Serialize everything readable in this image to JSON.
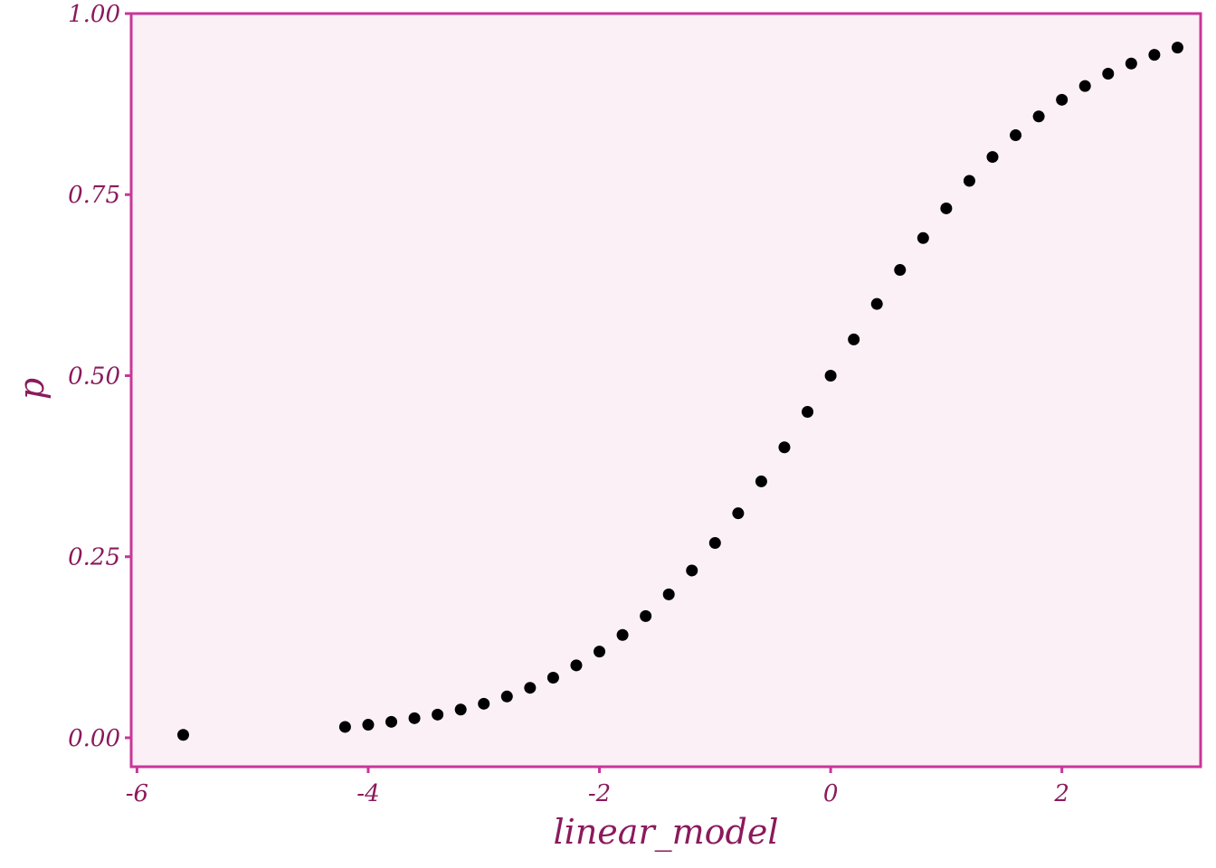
{
  "chart_data": {
    "type": "scatter",
    "title": "",
    "xlabel": "linear_model",
    "ylabel": "p",
    "xlim": [
      -6.05,
      3.2
    ],
    "ylim": [
      -0.04,
      1.0
    ],
    "x_ticks": [
      -6,
      -4,
      -2,
      0,
      2
    ],
    "x_tick_labels": [
      "-6",
      "-4",
      "-2",
      "0",
      "2"
    ],
    "y_ticks": [
      0,
      0.25,
      0.5,
      0.75,
      1.0
    ],
    "y_tick_labels": [
      "0.00",
      "0.25",
      "0.50",
      "0.75",
      "1.00"
    ],
    "grid": false,
    "legend": "none",
    "colors": {
      "panel_background": "#fbf0f6",
      "panel_border": "#c8369a",
      "text": "#8b1a5c",
      "point": "#000000"
    },
    "points": [
      {
        "x": -5.6,
        "y": 0.004
      },
      {
        "x": -4.2,
        "y": 0.015
      },
      {
        "x": -4.0,
        "y": 0.018
      },
      {
        "x": -3.8,
        "y": 0.022
      },
      {
        "x": -3.6,
        "y": 0.027
      },
      {
        "x": -3.4,
        "y": 0.032
      },
      {
        "x": -3.2,
        "y": 0.039
      },
      {
        "x": -3.0,
        "y": 0.047
      },
      {
        "x": -2.8,
        "y": 0.057
      },
      {
        "x": -2.6,
        "y": 0.069
      },
      {
        "x": -2.4,
        "y": 0.083
      },
      {
        "x": -2.2,
        "y": 0.1
      },
      {
        "x": -2.0,
        "y": 0.119
      },
      {
        "x": -1.8,
        "y": 0.142
      },
      {
        "x": -1.6,
        "y": 0.168
      },
      {
        "x": -1.4,
        "y": 0.198
      },
      {
        "x": -1.2,
        "y": 0.231
      },
      {
        "x": -1.0,
        "y": 0.269
      },
      {
        "x": -0.8,
        "y": 0.31
      },
      {
        "x": -0.6,
        "y": 0.354
      },
      {
        "x": -0.4,
        "y": 0.401
      },
      {
        "x": -0.2,
        "y": 0.45
      },
      {
        "x": 0.0,
        "y": 0.5
      },
      {
        "x": 0.2,
        "y": 0.55
      },
      {
        "x": 0.4,
        "y": 0.599
      },
      {
        "x": 0.6,
        "y": 0.646
      },
      {
        "x": 0.8,
        "y": 0.69
      },
      {
        "x": 1.0,
        "y": 0.731
      },
      {
        "x": 1.2,
        "y": 0.769
      },
      {
        "x": 1.4,
        "y": 0.802
      },
      {
        "x": 1.6,
        "y": 0.832
      },
      {
        "x": 1.8,
        "y": 0.858
      },
      {
        "x": 2.0,
        "y": 0.881
      },
      {
        "x": 2.2,
        "y": 0.9
      },
      {
        "x": 2.4,
        "y": 0.917
      },
      {
        "x": 2.6,
        "y": 0.931
      },
      {
        "x": 2.8,
        "y": 0.943
      },
      {
        "x": 3.0,
        "y": 0.953
      }
    ]
  }
}
